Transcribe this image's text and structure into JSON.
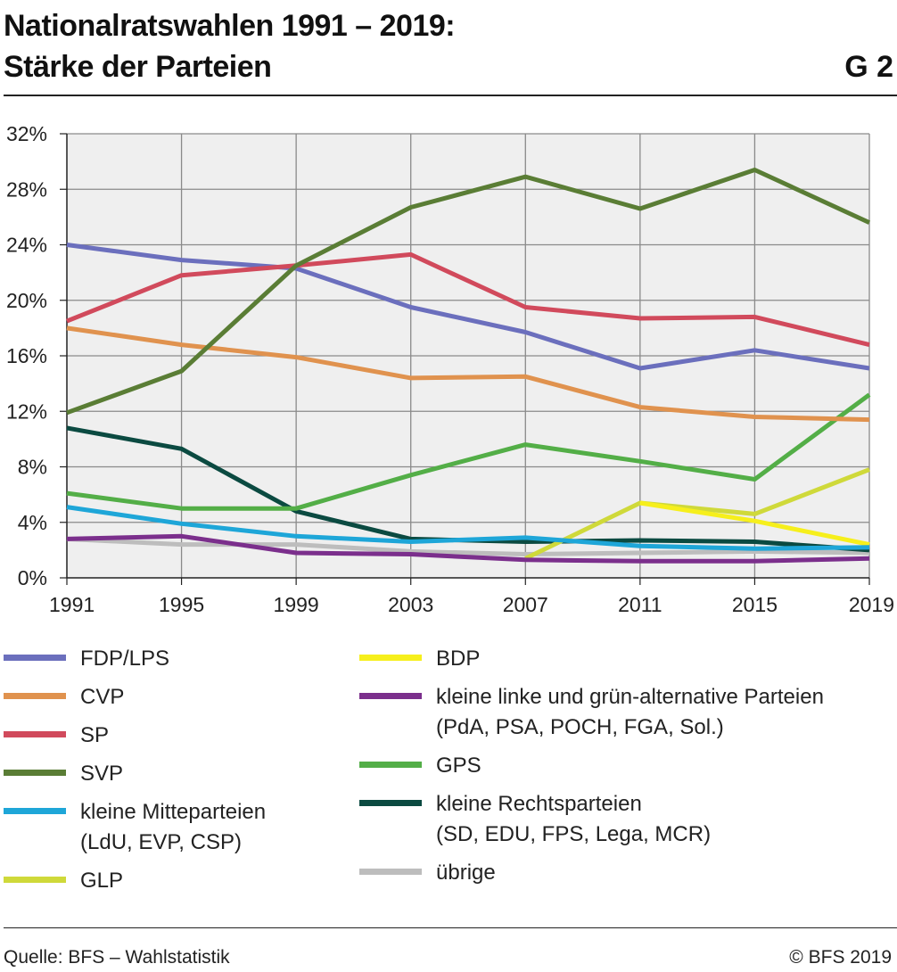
{
  "header": {
    "title_line1": "Nationalratswahlen 1991 – 2019:",
    "title_line2": "Stärke der Parteien",
    "figure_id": "G 2"
  },
  "footer": {
    "source": "Quelle: BFS – Wahlstatistik",
    "copyright": "© BFS 2019"
  },
  "chart_data": {
    "type": "line",
    "title": "Nationalratswahlen 1991 – 2019: Stärke der Parteien",
    "x": [
      1991,
      1995,
      1999,
      2003,
      2007,
      2011,
      2015,
      2019
    ],
    "x_tick_labels": [
      "1991",
      "1995",
      "1999",
      "2003",
      "2007",
      "2011",
      "2015",
      "2019"
    ],
    "y_ticks": [
      0,
      4,
      8,
      12,
      16,
      20,
      24,
      28,
      32
    ],
    "y_tick_labels": [
      "0%",
      "4%",
      "8%",
      "12%",
      "16%",
      "20%",
      "24%",
      "28%",
      "32%"
    ],
    "ylim": [
      0,
      32
    ],
    "y_unit": "%",
    "grid": true,
    "plot_background": "#efefef",
    "legend_position": "bottom",
    "series": [
      {
        "name": "FDP/LPS",
        "color": "#6b6fbd",
        "values": [
          24.0,
          22.9,
          22.3,
          19.5,
          17.7,
          15.1,
          16.4,
          15.1
        ]
      },
      {
        "name": "CVP",
        "color": "#e0924e",
        "values": [
          18.0,
          16.8,
          15.9,
          14.4,
          14.5,
          12.3,
          11.6,
          11.4
        ]
      },
      {
        "name": "SP",
        "color": "#d14a5c",
        "values": [
          18.5,
          21.8,
          22.5,
          23.3,
          19.5,
          18.7,
          18.8,
          16.8
        ]
      },
      {
        "name": "SVP",
        "color": "#5a7d35",
        "values": [
          11.9,
          14.9,
          22.5,
          26.7,
          28.9,
          26.6,
          29.4,
          25.6
        ]
      },
      {
        "name": "kleine Mitteparteien",
        "sub": "(LdU, EVP, CSP)",
        "color": "#1ea6d8",
        "values": [
          5.1,
          3.9,
          3.0,
          2.6,
          2.9,
          2.3,
          2.1,
          2.2
        ]
      },
      {
        "name": "GLP",
        "color": "#cfd93a",
        "values": [
          null,
          null,
          null,
          null,
          1.4,
          5.4,
          4.6,
          7.8
        ]
      },
      {
        "name": "BDP",
        "color": "#f6ef1c",
        "values": [
          null,
          null,
          null,
          null,
          null,
          5.4,
          4.1,
          2.4
        ]
      },
      {
        "name": "kleine linke und grün-alternative Parteien",
        "sub": "(PdA, PSA, POCH, FGA, Sol.)",
        "color": "#7b2f8c",
        "values": [
          2.8,
          3.0,
          1.8,
          1.7,
          1.3,
          1.2,
          1.2,
          1.4
        ]
      },
      {
        "name": "GPS",
        "color": "#53ae47",
        "values": [
          6.1,
          5.0,
          5.0,
          7.4,
          9.6,
          8.4,
          7.1,
          13.2
        ]
      },
      {
        "name": "kleine Rechtsparteien",
        "sub": "(SD, EDU, FPS, Lega, MCR)",
        "color": "#0b4a41",
        "values": [
          10.8,
          9.3,
          4.8,
          2.8,
          2.6,
          2.7,
          2.6,
          2.0
        ]
      },
      {
        "name": "übrige",
        "color": "#bdbdbd",
        "values": [
          2.8,
          2.4,
          2.4,
          1.9,
          1.7,
          1.8,
          1.9,
          1.8
        ]
      }
    ]
  }
}
